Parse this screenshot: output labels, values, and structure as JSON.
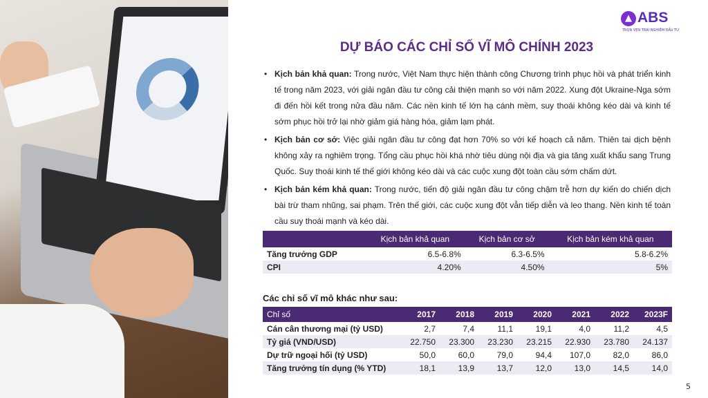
{
  "logo": {
    "text": "ABS",
    "tagline": "TRỌN VẸN TRẢI NGHIỆM ĐẦU TƯ"
  },
  "title": "DỰ BÁO CÁC CHỈ SỐ VĨ MÔ CHÍNH 2023",
  "bullets": [
    {
      "label": "Kịch bản khả quan:",
      "text": " Trong nước, Việt Nam thực hiện thành công Chương trình phục hồi và phát triển kinh tế trong năm 2023, với giải ngân đầu tư công cải thiện mạnh so với năm 2022. Xung đột Ukraine-Nga sớm đi đến hồi kết trong nửa đầu năm. Các nền kinh tế lớn hạ cánh mềm, suy thoái không kéo dài và kinh tế sớm phục hồi trở lại nhờ giảm giá hàng hóa, giảm lạm phát."
    },
    {
      "label": "Kịch bản cơ sở:",
      "text": " Việc giải ngân đầu tư công đạt hơn 70% so với kế hoạch cả năm. Thiên tai dịch bệnh không xảy ra nghiêm trọng. Tổng cầu phục hồi khá nhờ tiêu dùng nội địa và gia tăng xuất khẩu sang Trung Quốc. Suy thoái kinh tế thế giới không kéo dài và các cuộc xung đột toàn cầu sớm chấm dứt."
    },
    {
      "label": "Kịch bản kém khả quan:",
      "text": " Trong nước, tiến độ giải ngân đầu tư công chậm trễ hơn dự kiến do chiến dịch bài trừ tham nhũng, sai phạm. Trên thế giới, các cuộc xung đột vẫn tiếp diễn và leo thang. Nền kinh tế toàn cầu suy thoái mạnh và kéo dài."
    }
  ],
  "scenario_table": {
    "headers": [
      "",
      "Kịch bản khả quan",
      "Kịch bản cơ sở",
      "Kịch bản kém khả quan"
    ],
    "rows": [
      [
        "Tăng trưởng GDP",
        "6.5-6.8%",
        "6.3-6.5%",
        "5.8-6.2%"
      ],
      [
        "CPI",
        "4.20%",
        "4.50%",
        "5%"
      ]
    ]
  },
  "other_heading": "Các chỉ số vĩ mô khác như sau:",
  "macro_table": {
    "headers": [
      "Chỉ số",
      "2017",
      "2018",
      "2019",
      "2020",
      "2021",
      "2022",
      "2023F"
    ],
    "rows": [
      [
        "Cán cân thương mại (tỷ USD)",
        "2,7",
        "7,4",
        "11,1",
        "19,1",
        "4,0",
        "11,2",
        "4,5"
      ],
      [
        "Tỷ giá (VND/USD)",
        "22.750",
        "23.300",
        "23.230",
        "23.215",
        "22.930",
        "23.780",
        "24.137"
      ],
      [
        "Dự trữ ngoại hối (tỷ USD)",
        "50,0",
        "60,0",
        "79,0",
        "94,4",
        "107,0",
        "82,0",
        "86,0"
      ],
      [
        "Tăng trưởng tín dụng (% YTD)",
        "18,1",
        "13,9",
        "13,7",
        "12,0",
        "13,0",
        "14,5",
        "14,0"
      ]
    ]
  },
  "page_number": "5",
  "colors": {
    "title": "#5b2d86",
    "table_header": "#4a2a72",
    "row_alt": "#eeeaf4"
  }
}
